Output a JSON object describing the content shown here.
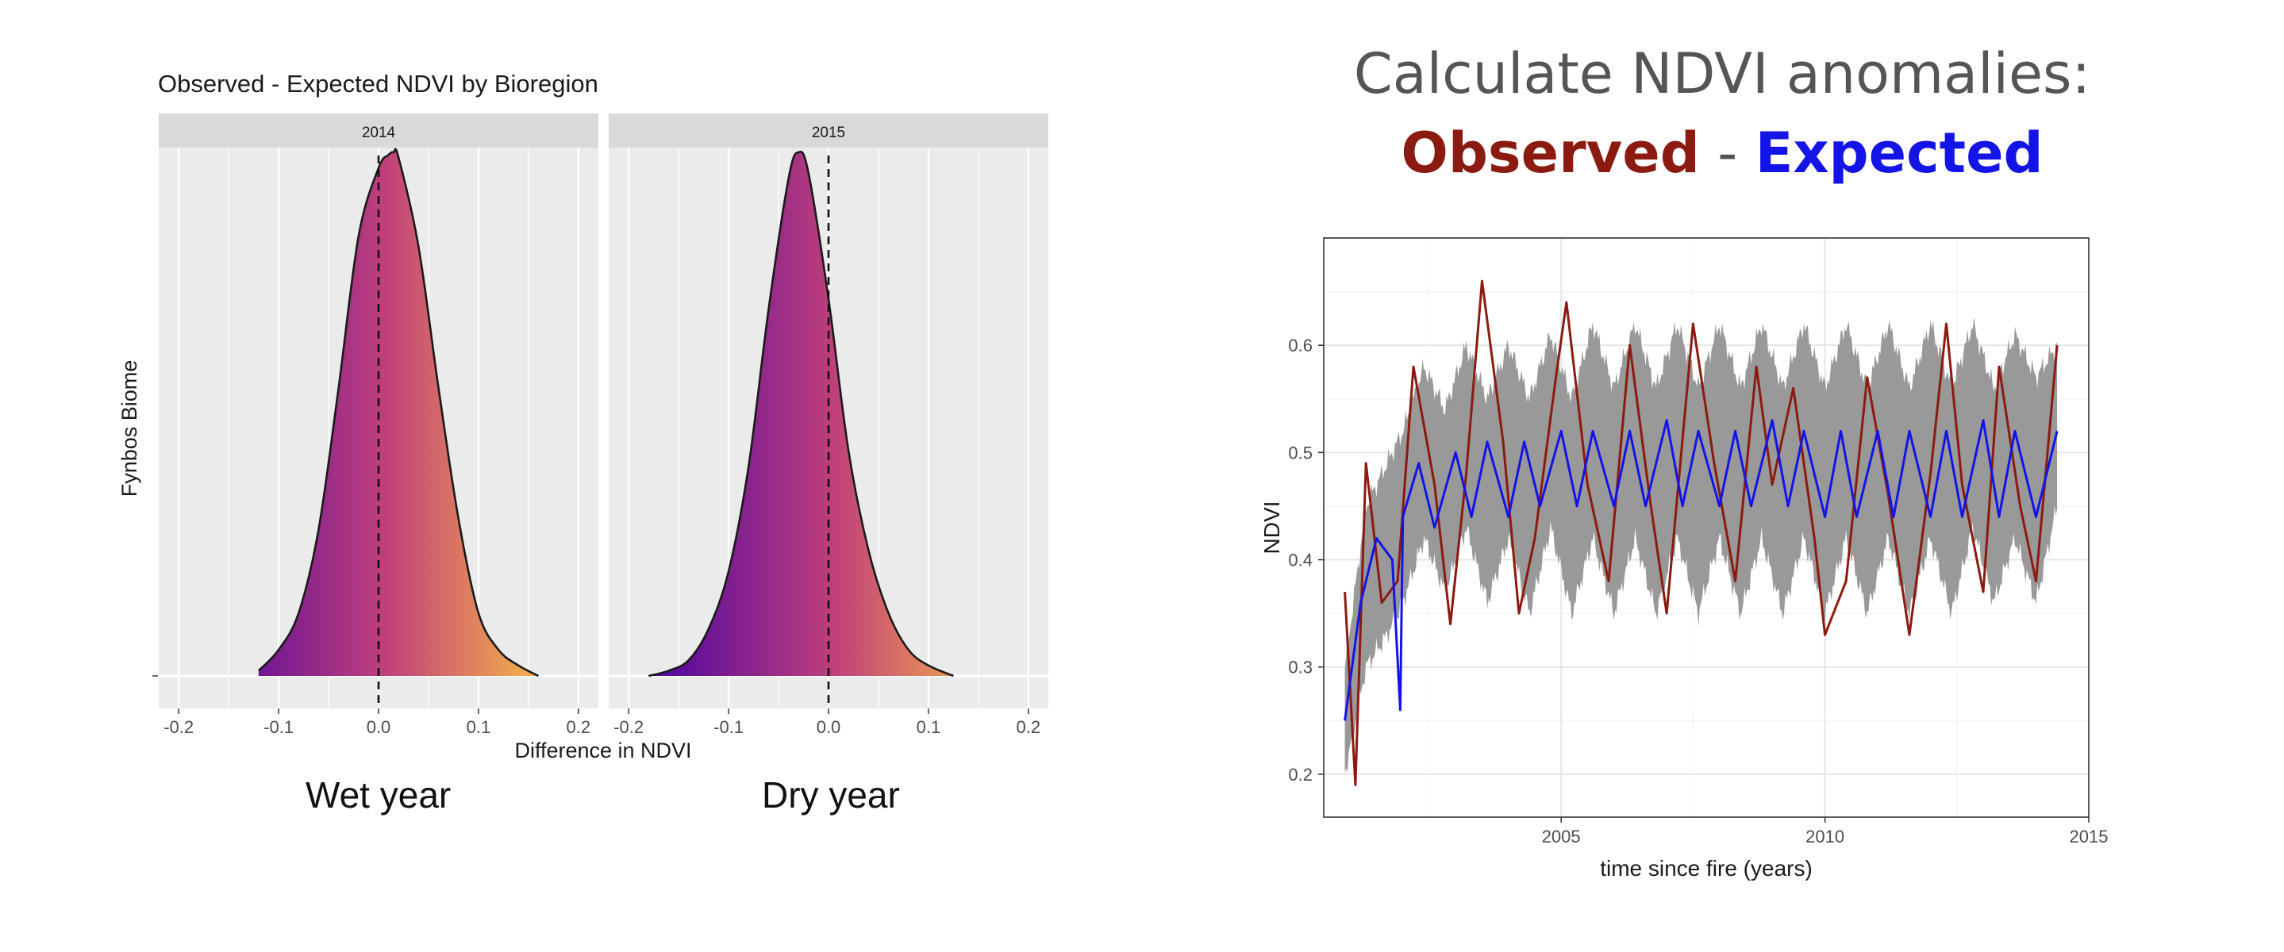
{
  "left_title": "Observed - Expected NDVI by Bioregion",
  "captions": {
    "wet": "Wet year",
    "dry": "Dry year"
  },
  "headline": {
    "line1": "Calculate NDVI anomalies:",
    "observed": "Observed",
    "separator": " - ",
    "expected": "Expected"
  },
  "colors": {
    "observed": "#8b1a10",
    "expected": "#1414e6",
    "ribbon": "#999999",
    "density_low": "#4a04a0",
    "density_mid": "#c0407a",
    "density_high": "#f6b34a",
    "panel_bg": "#ebebeb",
    "strip_bg": "#d9d9d9"
  },
  "chart_data": [
    {
      "type": "area",
      "subtype": "density",
      "facets": [
        "2014",
        "2015"
      ],
      "xlabel": "Difference in NDVI",
      "ylabel": "Fynbos Biome",
      "xlim": [
        -0.22,
        0.22
      ],
      "x_ticks": [
        "-0.2",
        "-0.1",
        "0.0",
        "0.1",
        "0.2"
      ],
      "reference_line_x": 0,
      "series": [
        {
          "facet": "2014",
          "x": [
            -0.12,
            -0.1,
            -0.08,
            -0.06,
            -0.04,
            -0.02,
            0.0,
            0.01,
            0.015,
            0.02,
            0.04,
            0.06,
            0.08,
            0.1,
            0.12,
            0.14,
            0.16
          ],
          "density": [
            0.01,
            0.05,
            0.12,
            0.28,
            0.55,
            0.84,
            0.97,
            0.995,
            1.0,
            0.99,
            0.82,
            0.55,
            0.3,
            0.12,
            0.05,
            0.02,
            0.0
          ]
        },
        {
          "facet": "2015",
          "x": [
            -0.18,
            -0.16,
            -0.14,
            -0.12,
            -0.1,
            -0.08,
            -0.06,
            -0.04,
            -0.03,
            -0.02,
            0.0,
            0.02,
            0.04,
            0.06,
            0.08,
            0.1,
            0.125
          ],
          "density": [
            0.0,
            0.01,
            0.03,
            0.09,
            0.2,
            0.4,
            0.7,
            0.95,
            1.0,
            0.96,
            0.72,
            0.43,
            0.24,
            0.12,
            0.05,
            0.02,
            0.0
          ]
        }
      ]
    },
    {
      "type": "line",
      "xlabel": "time since fire (years)",
      "ylabel": "NDVI",
      "xlim": [
        2000.5,
        2015
      ],
      "ylim": [
        0.16,
        0.7
      ],
      "x_ticks": [
        2005,
        2010,
        2015
      ],
      "y_ticks": [
        "0.2",
        "0.3",
        "0.4",
        "0.5",
        "0.6"
      ],
      "series": [
        {
          "name": "Observed",
          "x": [
            2000.9,
            2001.1,
            2001.3,
            2001.6,
            2001.9,
            2002.2,
            2002.6,
            2002.9,
            2003.2,
            2003.5,
            2003.9,
            2004.2,
            2004.5,
            2004.9,
            2005.1,
            2005.5,
            2005.9,
            2006.3,
            2006.7,
            2007.0,
            2007.5,
            2007.9,
            2008.3,
            2008.7,
            2009.0,
            2009.4,
            2009.8,
            2010.0,
            2010.4,
            2010.8,
            2011.2,
            2011.6,
            2012.0,
            2012.3,
            2012.6,
            2013.0,
            2013.3,
            2013.7,
            2014.0,
            2014.4
          ],
          "y": [
            0.37,
            0.19,
            0.49,
            0.36,
            0.38,
            0.58,
            0.47,
            0.34,
            0.48,
            0.66,
            0.51,
            0.35,
            0.42,
            0.57,
            0.64,
            0.47,
            0.38,
            0.6,
            0.45,
            0.35,
            0.62,
            0.49,
            0.38,
            0.58,
            0.47,
            0.56,
            0.42,
            0.33,
            0.38,
            0.57,
            0.46,
            0.33,
            0.48,
            0.62,
            0.47,
            0.37,
            0.58,
            0.45,
            0.38,
            0.6
          ]
        },
        {
          "name": "Expected",
          "x": [
            2000.9,
            2001.2,
            2001.5,
            2001.8,
            2001.95,
            2002.0,
            2002.3,
            2002.6,
            2003.0,
            2003.3,
            2003.6,
            2004.0,
            2004.3,
            2004.6,
            2005.0,
            2005.3,
            2005.6,
            2006.0,
            2006.3,
            2006.6,
            2007.0,
            2007.3,
            2007.6,
            2008.0,
            2008.3,
            2008.6,
            2009.0,
            2009.3,
            2009.6,
            2010.0,
            2010.3,
            2010.6,
            2011.0,
            2011.3,
            2011.6,
            2012.0,
            2012.3,
            2012.6,
            2013.0,
            2013.3,
            2013.6,
            2014.0,
            2014.4
          ],
          "y": [
            0.25,
            0.36,
            0.42,
            0.4,
            0.26,
            0.44,
            0.49,
            0.43,
            0.5,
            0.44,
            0.51,
            0.44,
            0.51,
            0.45,
            0.52,
            0.45,
            0.52,
            0.45,
            0.52,
            0.45,
            0.53,
            0.45,
            0.52,
            0.45,
            0.52,
            0.45,
            0.53,
            0.45,
            0.52,
            0.44,
            0.52,
            0.44,
            0.52,
            0.44,
            0.52,
            0.44,
            0.52,
            0.44,
            0.53,
            0.44,
            0.52,
            0.44,
            0.52
          ]
        }
      ],
      "ribbon": {
        "x": [
          2000.9,
          2001.3,
          2001.7,
          2002.0,
          2002.4,
          2002.8,
          2003.2,
          2003.6,
          2004.0,
          2004.4,
          2004.8,
          2005.2,
          2005.6,
          2006.0,
          2006.4,
          2006.8,
          2007.2,
          2007.6,
          2008.0,
          2008.4,
          2008.8,
          2009.2,
          2009.6,
          2010.0,
          2010.4,
          2010.8,
          2011.2,
          2011.6,
          2012.0,
          2012.4,
          2012.8,
          2013.2,
          2013.6,
          2014.0,
          2014.4
        ],
        "lower": [
          0.2,
          0.3,
          0.33,
          0.36,
          0.42,
          0.37,
          0.43,
          0.36,
          0.42,
          0.35,
          0.43,
          0.35,
          0.42,
          0.35,
          0.42,
          0.35,
          0.42,
          0.35,
          0.42,
          0.35,
          0.42,
          0.35,
          0.42,
          0.35,
          0.42,
          0.35,
          0.42,
          0.35,
          0.42,
          0.35,
          0.43,
          0.36,
          0.42,
          0.36,
          0.45
        ],
        "upper": [
          0.3,
          0.45,
          0.49,
          0.52,
          0.58,
          0.54,
          0.6,
          0.55,
          0.6,
          0.55,
          0.61,
          0.55,
          0.62,
          0.56,
          0.62,
          0.56,
          0.62,
          0.56,
          0.62,
          0.56,
          0.62,
          0.56,
          0.62,
          0.56,
          0.62,
          0.56,
          0.62,
          0.56,
          0.62,
          0.56,
          0.62,
          0.56,
          0.61,
          0.57,
          0.6
        ]
      }
    }
  ]
}
